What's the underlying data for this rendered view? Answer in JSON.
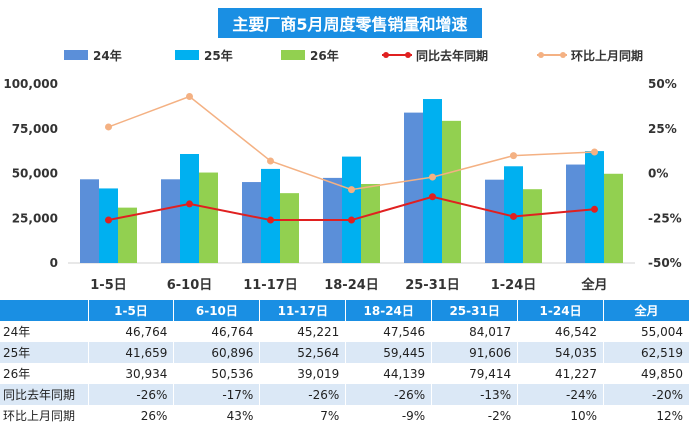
{
  "chart_data": {
    "type": "bar",
    "title": "主要厂商5月周度零售销量和增速",
    "categories": [
      "1-5日",
      "6-10日",
      "11-17日",
      "18-24日",
      "25-31日",
      "1-24日",
      "全月"
    ],
    "series": [
      {
        "name": "24年",
        "type": "bar",
        "axis": "left",
        "color": "#5b8fd9",
        "values": [
          46764,
          46764,
          45221,
          47546,
          84017,
          46542,
          55004
        ]
      },
      {
        "name": "25年",
        "type": "bar",
        "axis": "left",
        "color": "#00b0f0",
        "values": [
          41659,
          60896,
          52564,
          59445,
          91606,
          54035,
          62519
        ]
      },
      {
        "name": "26年",
        "type": "bar",
        "axis": "left",
        "color": "#92d050",
        "values": [
          30934,
          50536,
          39019,
          44139,
          79414,
          41227,
          49850
        ]
      },
      {
        "name": "同比去年同期",
        "type": "line",
        "axis": "right",
        "color": "#e02020",
        "values": [
          -26,
          -17,
          -26,
          -26,
          -13,
          -24,
          -20
        ]
      },
      {
        "name": "环比上月同期",
        "type": "line",
        "axis": "right",
        "color": "#f4b183",
        "values": [
          26,
          43,
          7,
          -9,
          -2,
          10,
          12
        ]
      }
    ],
    "y_left": {
      "min": 0,
      "max": 100000,
      "ticks": [
        "0",
        "25,000",
        "50,000",
        "75,000",
        "100,000"
      ]
    },
    "y_right": {
      "min": -50,
      "max": 50,
      "ticks": [
        "-50%",
        "-25%",
        "0%",
        "25%",
        "50%"
      ]
    },
    "legend_position": "top",
    "grid": false
  },
  "table": {
    "headers": [
      "",
      "1-5日",
      "6-10日",
      "11-17日",
      "18-24日",
      "25-31日",
      "1-24日",
      "全月"
    ],
    "rows": [
      {
        "label": "24年",
        "cells": [
          "46,764",
          "46,764",
          "45,221",
          "47,546",
          "84,017",
          "46,542",
          "55,004"
        ]
      },
      {
        "label": "25年",
        "cells": [
          "41,659",
          "60,896",
          "52,564",
          "59,445",
          "91,606",
          "54,035",
          "62,519"
        ]
      },
      {
        "label": "26年",
        "cells": [
          "30,934",
          "50,536",
          "39,019",
          "44,139",
          "79,414",
          "41,227",
          "49,850"
        ]
      },
      {
        "label": "同比去年同期",
        "cells": [
          "-26%",
          "-17%",
          "-26%",
          "-26%",
          "-13%",
          "-24%",
          "-20%"
        ]
      },
      {
        "label": "环比上月同期",
        "cells": [
          "26%",
          "43%",
          "7%",
          "-9%",
          "-2%",
          "10%",
          "12%"
        ]
      }
    ]
  },
  "colors": {
    "title_bg": "#1a8fe3",
    "header_bg": "#1a8fe3",
    "row_alt_bg": "#dbe8f6"
  }
}
